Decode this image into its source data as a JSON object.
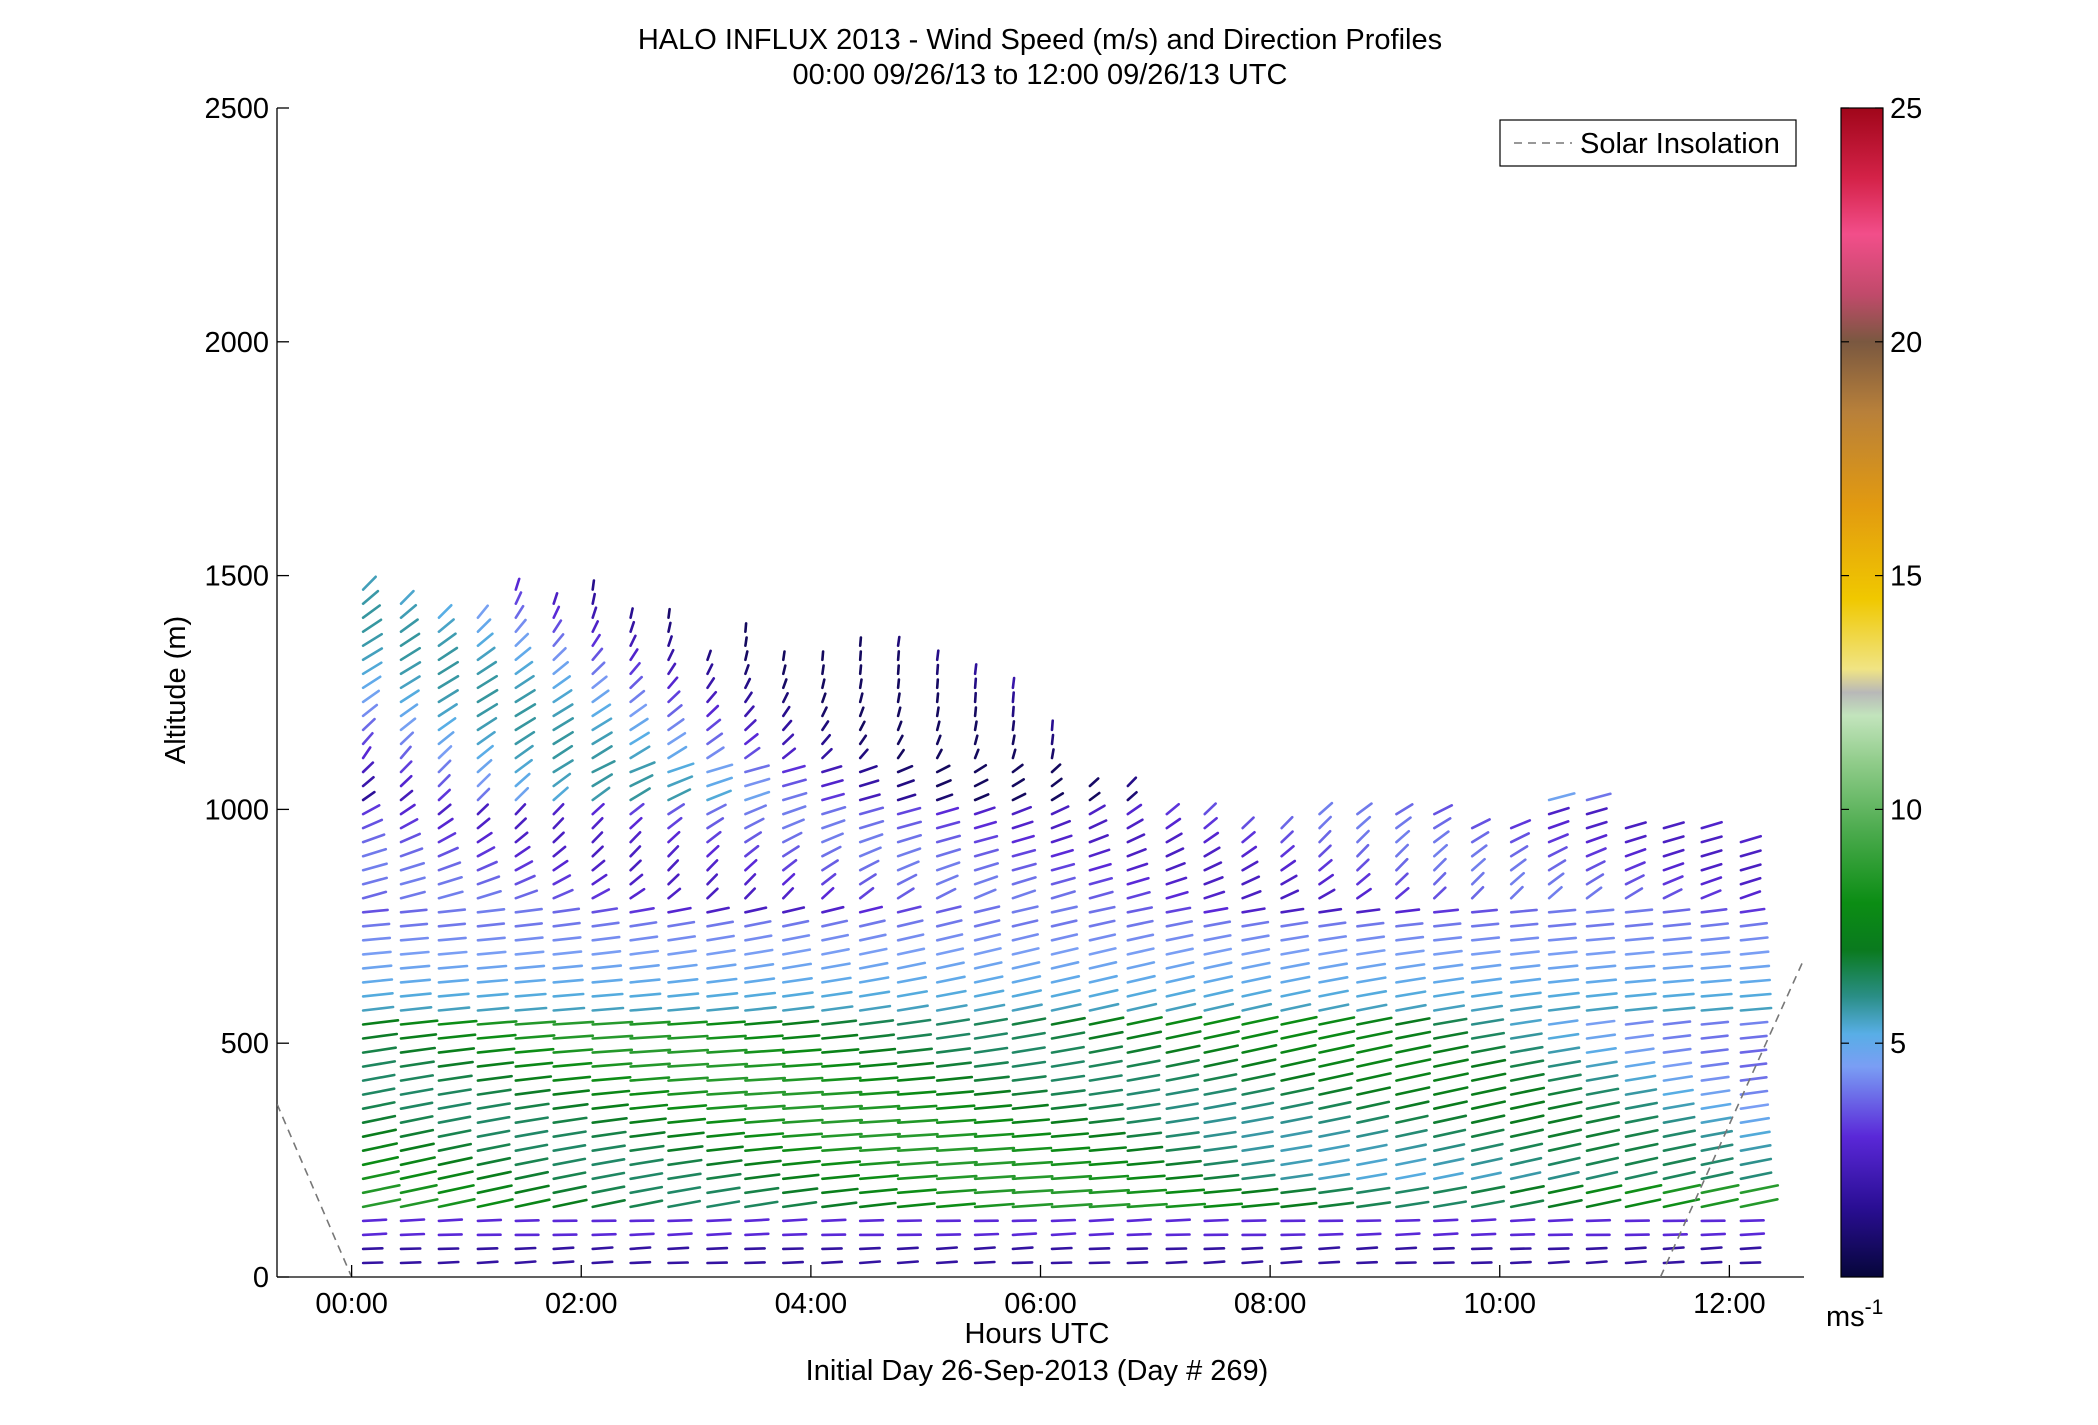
{
  "chart_data": {
    "type": "wind-barb-profile",
    "title": "HALO INFLUX 2013 - Wind Speed (m/s) and Direction Profiles",
    "subtitle": "00:00 09/26/13 to 12:00 09/26/13  UTC",
    "xlabel": "Hours UTC",
    "xlabel2": "Initial Day 26-Sep-2013 (Day # 269)",
    "ylabel": "Altitude (m)",
    "xlim": [
      -0.65,
      12.65
    ],
    "ylim": [
      0,
      2500
    ],
    "x_ticks": [
      0,
      2,
      4,
      6,
      8,
      10,
      12
    ],
    "x_tick_labels": [
      "00:00",
      "02:00",
      "04:00",
      "06:00",
      "08:00",
      "10:00",
      "12:00"
    ],
    "y_ticks": [
      0,
      500,
      1000,
      1500,
      2000,
      2500
    ],
    "y_tick_labels": [
      "0",
      "500",
      "1000",
      "1500",
      "2000",
      "2500"
    ],
    "legend": {
      "entries": [
        "Solar Insolation"
      ],
      "location": "top-right"
    },
    "solar_insolation": {
      "style": "dashed",
      "color": "#777777",
      "morning_segment": [
        [
          -0.65,
          370
        ],
        [
          0.0,
          0
        ]
      ],
      "evening_segment": [
        [
          11.4,
          0
        ],
        [
          12.65,
          680
        ]
      ]
    },
    "colorbar": {
      "unit_label": "ms",
      "unit_exponent": "-1",
      "min": 0,
      "max": 25,
      "ticks": [
        5,
        10,
        15,
        20,
        25
      ],
      "tick_labels": [
        "5",
        "10",
        "15",
        "20",
        "25"
      ],
      "stops": [
        {
          "v": 0.0,
          "c": "#06063a"
        },
        {
          "v": 1.5,
          "c": "#2a0e94"
        },
        {
          "v": 3.0,
          "c": "#5a28d8"
        },
        {
          "v": 4.5,
          "c": "#7a9ef4"
        },
        {
          "v": 5.2,
          "c": "#58aee6"
        },
        {
          "v": 6.0,
          "c": "#2a8e86"
        },
        {
          "v": 7.0,
          "c": "#0a7a1e"
        },
        {
          "v": 8.0,
          "c": "#0b8d14"
        },
        {
          "v": 9.5,
          "c": "#4aaa4c"
        },
        {
          "v": 11.0,
          "c": "#90cc8a"
        },
        {
          "v": 12.0,
          "c": "#c2e4bc"
        },
        {
          "v": 12.5,
          "c": "#b8b8b8"
        },
        {
          "v": 13.0,
          "c": "#f0e484"
        },
        {
          "v": 14.5,
          "c": "#f0c800"
        },
        {
          "v": 16.5,
          "c": "#e29a10"
        },
        {
          "v": 18.5,
          "c": "#b8803a"
        },
        {
          "v": 20.0,
          "c": "#7a5840"
        },
        {
          "v": 21.0,
          "c": "#c04a6a"
        },
        {
          "v": 22.3,
          "c": "#f24e8a"
        },
        {
          "v": 23.5,
          "c": "#d42248"
        },
        {
          "v": 25.0,
          "c": "#a0061a"
        }
      ]
    },
    "profile_times_hours": [
      0.1,
      0.43,
      0.76,
      1.1,
      1.43,
      1.76,
      2.1,
      2.43,
      2.76,
      3.1,
      3.43,
      3.76,
      4.1,
      4.43,
      4.76,
      5.1,
      5.43,
      5.76,
      6.1,
      6.43,
      6.76,
      7.1,
      7.43,
      7.76,
      8.1,
      8.43,
      8.76,
      9.1,
      9.43,
      9.76,
      10.1,
      10.43,
      10.76,
      11.1,
      11.43,
      11.76,
      12.1
    ],
    "profile_top_altitudes_m": [
      1490,
      1450,
      1420,
      1420,
      1490,
      1440,
      1490,
      1430,
      1420,
      1340,
      1380,
      1340,
      1330,
      1360,
      1360,
      1330,
      1290,
      1260,
      1170,
      1050,
      1050,
      1000,
      990,
      980,
      980,
      990,
      990,
      990,
      990,
      970,
      980,
      1020,
      1020,
      960,
      960,
      960,
      950
    ],
    "altitude_bin_m": 30,
    "lowest_altitude_m": 30
  }
}
